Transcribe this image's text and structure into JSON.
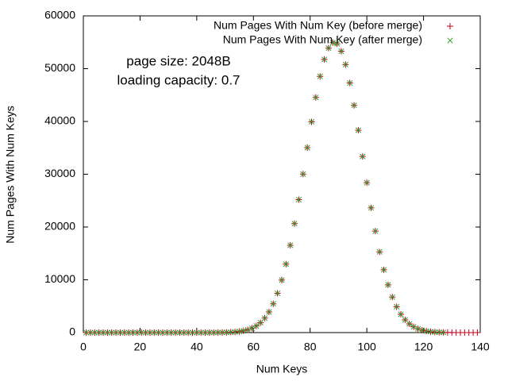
{
  "chart_data": {
    "type": "scatter",
    "annotations": [
      "page size: 2048B",
      "loading capacity: 0.7"
    ],
    "x_label": "Num Keys",
    "y_label": "Num Pages With Num Keys",
    "xlim": [
      0,
      140
    ],
    "xticks": [
      0,
      20,
      40,
      60,
      80,
      100,
      120,
      140
    ],
    "ylim": [
      0,
      60000
    ],
    "yticks": [
      0,
      10000,
      20000,
      30000,
      40000,
      50000,
      60000
    ],
    "grid": false,
    "legend": "top-right",
    "x": [
      1,
      2.5,
      4,
      5.5,
      7,
      8.5,
      10,
      11.5,
      13,
      14.5,
      16,
      17.5,
      19,
      20.5,
      22,
      23.5,
      25,
      26.5,
      28,
      29.5,
      31,
      32.5,
      34,
      35.5,
      37,
      38.5,
      40,
      41.5,
      43,
      44.5,
      46,
      47.5,
      49,
      50.5,
      52,
      53.5,
      55,
      56.5,
      58,
      59.5,
      61,
      62.5,
      64,
      65.5,
      67,
      68.5,
      70,
      71.5,
      73,
      74.5,
      76,
      77.5,
      79,
      80.5,
      82,
      83.5,
      85,
      86.5,
      88,
      89.5,
      91,
      92.5,
      94,
      95.5,
      97,
      98.5,
      100,
      101.5,
      103,
      104.5,
      106,
      107.5,
      109,
      110.5,
      112,
      113.5,
      115,
      116.5,
      118,
      119.5,
      121,
      122.5,
      124,
      125.5,
      127,
      128.5,
      130,
      131.5,
      133,
      134.5,
      136,
      137.5,
      139
    ],
    "series": [
      {
        "name": "Num Pages With Num Key (before merge)",
        "color": "#c0001f",
        "marker": "plus",
        "values": [
          0,
          0,
          0,
          0,
          0,
          0,
          0,
          0,
          0,
          0,
          0,
          0,
          0,
          0,
          0,
          0,
          0,
          0,
          0,
          0,
          0,
          0,
          0,
          0,
          0,
          0,
          0,
          0,
          0,
          3,
          7,
          12,
          22,
          40,
          70,
          120,
          201,
          329,
          526,
          820,
          1255,
          1870,
          2738,
          3905,
          5460,
          7443,
          9938,
          12963,
          16550,
          20642,
          25185,
          30030,
          35035,
          39930,
          44550,
          48538,
          51744,
          53900,
          54931,
          54726,
          53306,
          50771,
          47284,
          43049,
          38335,
          33358,
          28397,
          23628,
          19228,
          15290,
          11897,
          9048,
          6727,
          4890,
          3476,
          2415,
          1645,
          1089,
          710,
          450,
          280,
          170,
          101,
          58,
          33,
          18,
          10,
          5,
          3,
          1,
          0,
          0,
          0
        ]
      },
      {
        "name": "Num Pages With Num Key (after merge)",
        "color": "#2aa02a",
        "marker": "cross",
        "values": [
          0,
          0,
          0,
          0,
          0,
          0,
          0,
          0,
          0,
          0,
          0,
          0,
          0,
          0,
          0,
          0,
          0,
          0,
          0,
          0,
          0,
          0,
          0,
          0,
          0,
          0,
          0,
          0,
          0,
          3,
          7,
          12,
          22,
          40,
          70,
          120,
          201,
          329,
          526,
          820,
          1255,
          1870,
          2738,
          3905,
          5460,
          7443,
          9938,
          12963,
          16550,
          20642,
          25185,
          30030,
          35035,
          39930,
          44550,
          48538,
          51744,
          53900,
          54931,
          54726,
          53306,
          50771,
          47284,
          43049,
          38335,
          33358,
          28397,
          23628,
          19228,
          15290,
          11897,
          9048,
          6727,
          4890,
          3476,
          2415,
          1645,
          1089,
          710,
          450,
          280,
          170,
          101,
          58,
          33,
          null,
          null,
          null,
          null,
          null,
          null,
          null,
          null
        ]
      }
    ]
  }
}
